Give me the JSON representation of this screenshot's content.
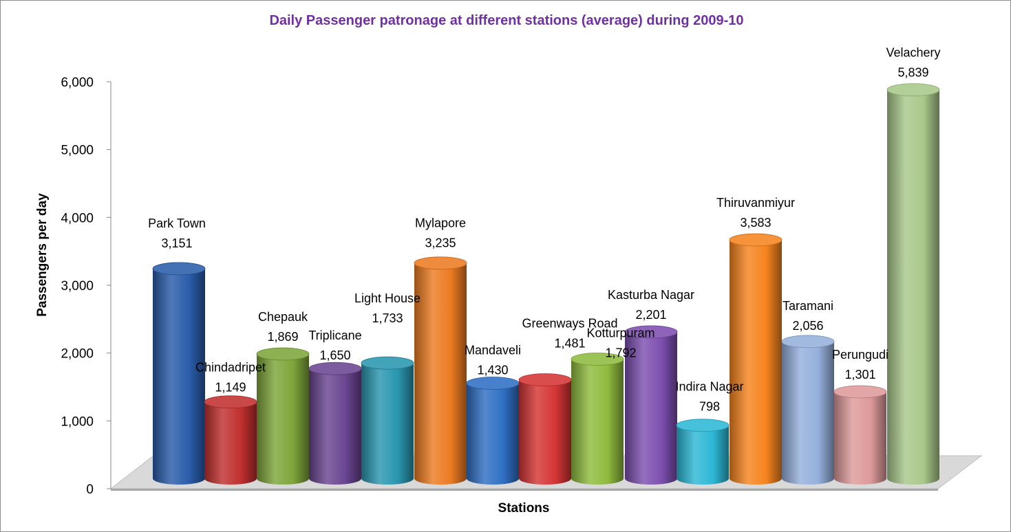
{
  "chart_data": {
    "type": "bar",
    "title": "Daily Passenger patronage at different stations (average) during 2009-10",
    "xlabel": "Stations",
    "ylabel": "Passengers per day",
    "ylim": [
      0,
      6000
    ],
    "yticks": [
      "0",
      "1,000",
      "2,000",
      "3,000",
      "4,000",
      "5,000",
      "6,000"
    ],
    "grid": false,
    "legend": "none",
    "title_color": "#7030a0",
    "categories": [
      "Park Town",
      "Chindadripet",
      "Chepauk",
      "Triplicane",
      "Light House",
      "Mylapore",
      "Mandaveli",
      "Greenways Road",
      "Kotturpuram",
      "Kasturba Nagar",
      "Indira Nagar",
      "Thiruvanmiyur",
      "Taramani",
      "Perungudi",
      "Velachery"
    ],
    "values": [
      3151,
      1149,
      1869,
      1650,
      1733,
      3235,
      1430,
      1481,
      1792,
      2201,
      798,
      3583,
      2056,
      1301,
      5839
    ],
    "value_labels": [
      "3,151",
      "1,149",
      "1,869",
      "1,650",
      "1,733",
      "3,235",
      "1,430",
      "1,481",
      "1,792",
      "2,201",
      "798",
      "3,583",
      "2,056",
      "1,301",
      "5,839"
    ],
    "colors": [
      "#2a5caa",
      "#c0302e",
      "#7ea53a",
      "#6a4591",
      "#2996b0",
      "#ec7b22",
      "#2f6fc4",
      "#d53535",
      "#8fbb3e",
      "#7d4fb0",
      "#2db8d6",
      "#f6841f",
      "#95b0dc",
      "#de9a9a",
      "#a9c88a"
    ]
  }
}
